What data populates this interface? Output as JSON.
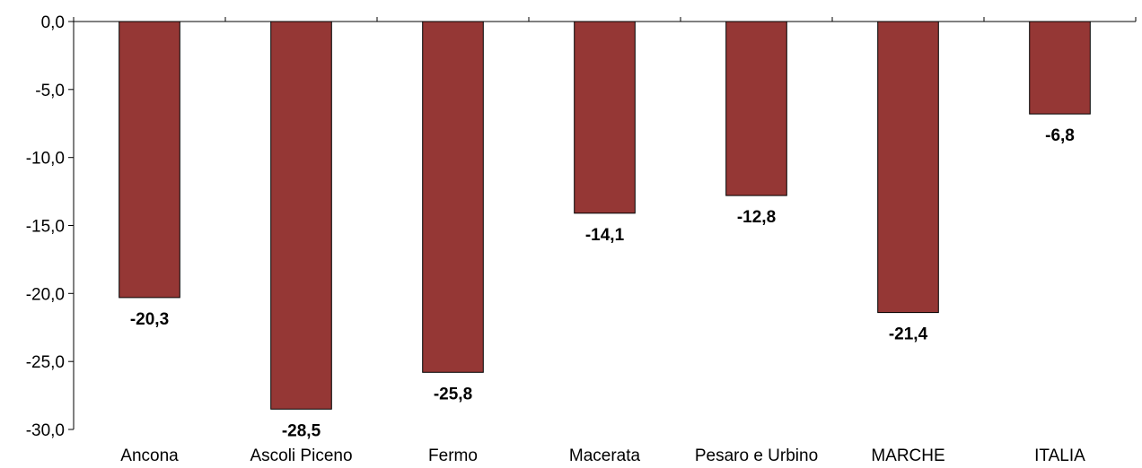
{
  "colors": {
    "bar": "#953735",
    "axis": "#000000",
    "background": "#ffffff"
  },
  "chart_data": {
    "type": "bar",
    "categories": [
      "Ancona",
      "Ascoli Piceno",
      "Fermo",
      "Macerata",
      "Pesaro e Urbino",
      "MARCHE",
      "ITALIA"
    ],
    "values": [
      -20.3,
      -28.5,
      -25.8,
      -14.1,
      -12.8,
      -21.4,
      -6.8
    ],
    "data_labels": [
      "-20,3",
      "-28,5",
      "-25,8",
      "-14,1",
      "-12,8",
      "-21,4",
      "-6,8"
    ],
    "yticks": [
      0,
      -5,
      -10,
      -15,
      -20,
      -25,
      -30
    ],
    "ytick_labels": [
      "0,0",
      "-5,0",
      "-10,0",
      "-15,0",
      "-20,0",
      "-25,0",
      "-30,0"
    ],
    "ylim": [
      -30,
      0
    ],
    "title": "",
    "xlabel": "",
    "ylabel": "",
    "grid": false,
    "legend": "none"
  }
}
